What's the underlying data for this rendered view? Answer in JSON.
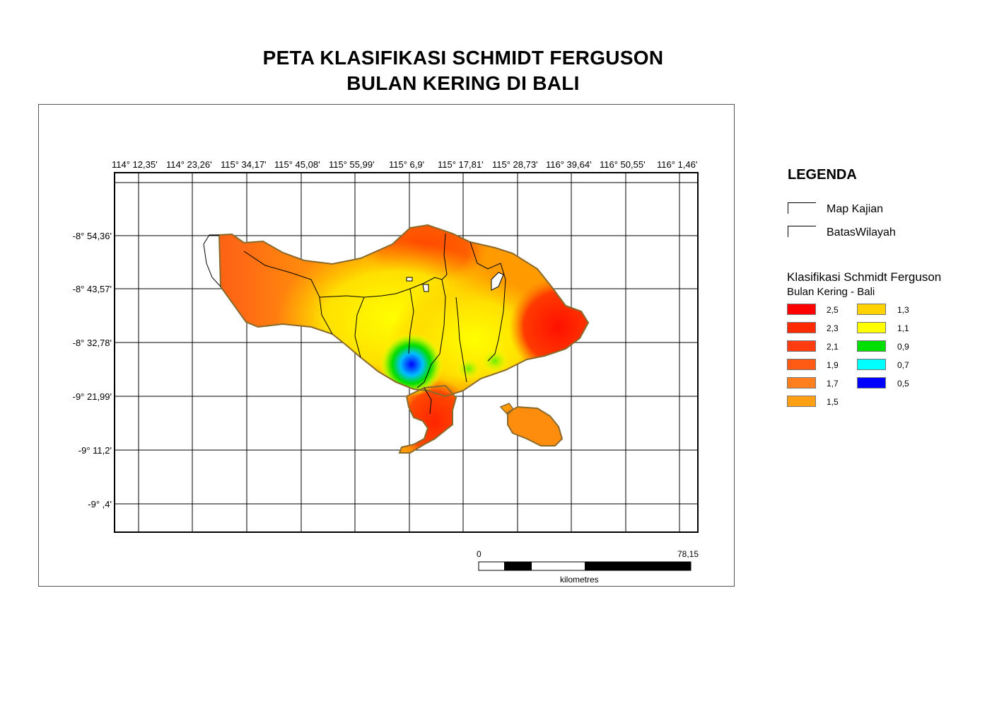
{
  "title": {
    "line1": "PETA KLASIFIKASI SCHMIDT FERGUSON",
    "line2": "BULAN KERING DI BALI"
  },
  "map": {
    "longitude_labels": [
      "114° 12,35'",
      "114° 23,26'",
      "115° 34,17'",
      "115° 45,08'",
      "115° 55,99'",
      "115° 6,9'",
      "115° 17,81'",
      "115° 28,73'",
      "116° 39,64'",
      "116° 50,55'",
      "116° 1,46'"
    ],
    "latitude_labels": [
      "-8° 54,36'",
      "-8° 43,57'",
      "-8° 32,78'",
      "-9° 21,99'",
      "-9° 11,2'",
      "-9° ,4'"
    ],
    "scale_bar": {
      "start": "0",
      "end": "78,15",
      "unit": "kilometres"
    },
    "colors": {
      "background_value": "#ff9a00",
      "coast_outline": "#8a6a2a",
      "boundary_lines": "#000000"
    }
  },
  "legend": {
    "title": "LEGENDA",
    "items": [
      {
        "label": "Map Kajian"
      },
      {
        "label": "BatasWilayah"
      }
    ],
    "classification_title": "Klasifikasi Schmidt Ferguson",
    "classification_subtitle": "Bulan Kering - Bali",
    "classes": [
      {
        "label": "2,5",
        "color": "#ff0000"
      },
      {
        "label": "2,3",
        "color": "#ff2a00"
      },
      {
        "label": "2,1",
        "color": "#ff3c0f"
      },
      {
        "label": "1,9",
        "color": "#ff5a14"
      },
      {
        "label": "1,7",
        "color": "#ff7f1e"
      },
      {
        "label": "1,5",
        "color": "#ffa014"
      },
      {
        "label": "1,3",
        "color": "#ffd200"
      },
      {
        "label": "1,1",
        "color": "#ffff00"
      },
      {
        "label": "0,9",
        "color": "#00e000"
      },
      {
        "label": "0,7",
        "color": "#00ffff"
      },
      {
        "label": "0,5",
        "color": "#0000ff"
      }
    ]
  }
}
